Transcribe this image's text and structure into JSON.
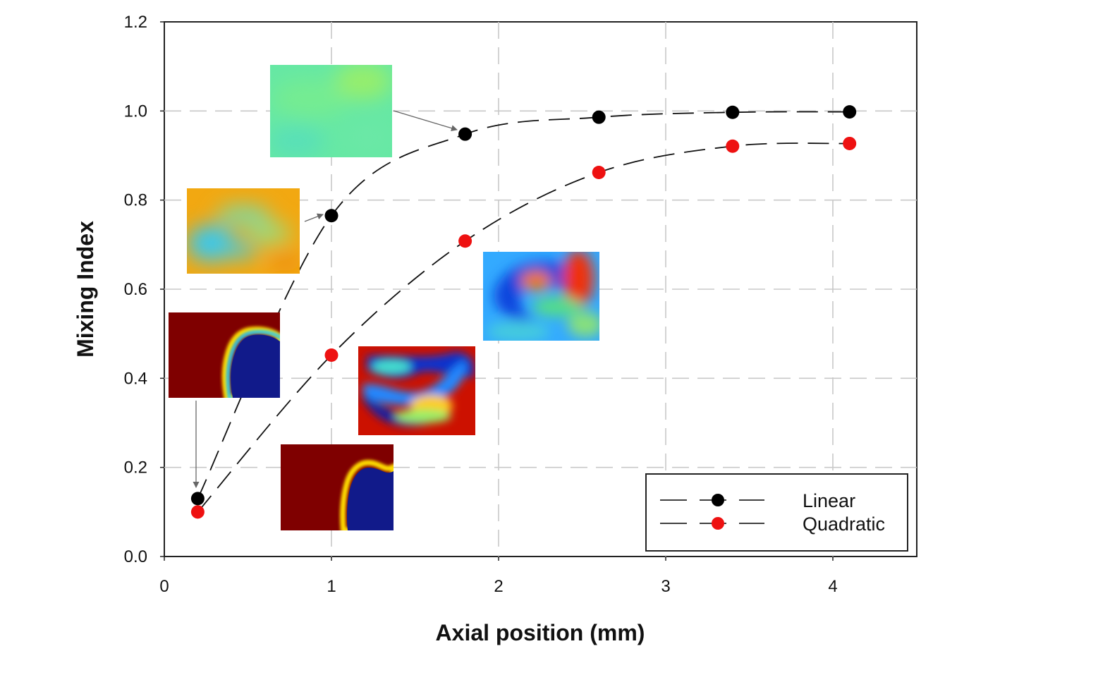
{
  "chart_data": {
    "type": "line",
    "title": "",
    "xlabel": "Axial position (mm)",
    "ylabel": "Mixing Index",
    "xlim": [
      0,
      4.5
    ],
    "ylim": [
      0,
      1.2
    ],
    "xticks": [
      0,
      1,
      2,
      3,
      4
    ],
    "xtick_labels": [
      "0",
      "1",
      "2",
      "3",
      "4"
    ],
    "yticks": [
      0,
      0.2,
      0.4,
      0.6,
      0.8,
      1.0,
      1.2
    ],
    "ytick_labels": [
      "0.0",
      "0.2",
      "0.4",
      "0.6",
      "0.8",
      "1.0",
      "1.2"
    ],
    "grid": true,
    "grid_style": "dashed",
    "legend_position": "bottom-right",
    "series": [
      {
        "name": "Linear",
        "color": "#000000",
        "line_style": "long-dash",
        "x": [
          0.2,
          1.0,
          1.8,
          2.6,
          3.4,
          4.1
        ],
        "y": [
          0.13,
          0.765,
          0.948,
          0.986,
          0.997,
          0.998
        ]
      },
      {
        "name": "Quadratic",
        "color": "#ee1111",
        "line_style": "long-dash",
        "x": [
          0.2,
          1.0,
          1.8,
          2.6,
          3.4,
          4.1
        ],
        "y": [
          0.1,
          0.452,
          0.708,
          0.862,
          0.921,
          0.927
        ]
      }
    ],
    "insets": [
      {
        "name": "cross-section-linear-0.2mm",
        "series": "Linear",
        "x": 0.2,
        "pattern": "interface-left"
      },
      {
        "name": "cross-section-linear-1.0mm",
        "series": "Linear",
        "x": 1.0,
        "pattern": "partial-mix-warm"
      },
      {
        "name": "cross-section-linear-1.8mm",
        "series": "Linear",
        "x": 1.8,
        "pattern": "near-uniform"
      },
      {
        "name": "cross-section-quadratic-0.2mm",
        "series": "Quadratic",
        "x": 0.2,
        "pattern": "interface-right"
      },
      {
        "name": "cross-section-quadratic-1.0mm",
        "series": "Quadratic",
        "x": 1.0,
        "pattern": "stretched-fold"
      },
      {
        "name": "cross-section-quadratic-1.8mm",
        "series": "Quadratic",
        "x": 1.8,
        "pattern": "partial-mix-cool"
      }
    ],
    "colormap": "jet"
  }
}
